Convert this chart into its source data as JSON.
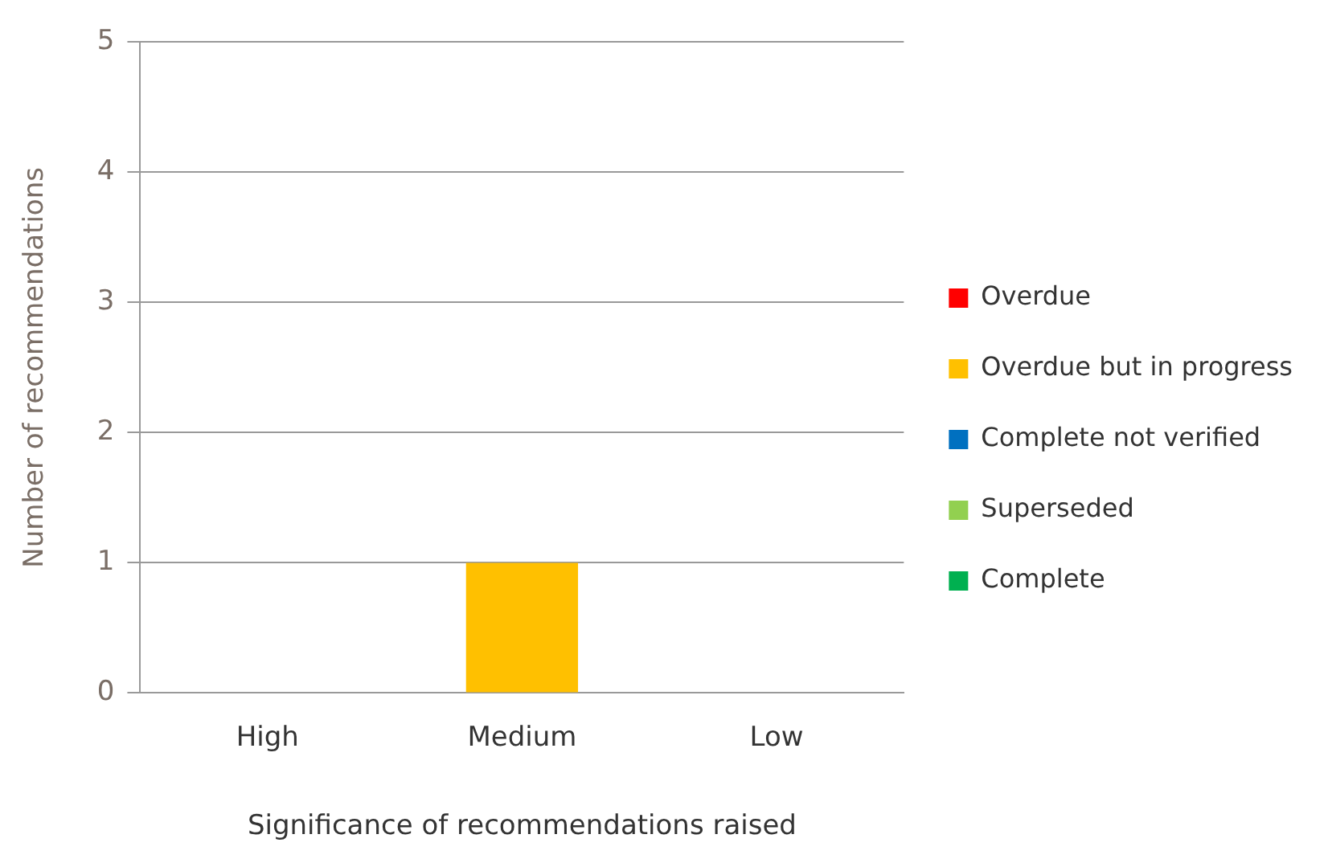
{
  "chart_data": {
    "type": "bar",
    "xlabel": "Significance of recommendations raised",
    "ylabel": "Number of recommendations",
    "categories": [
      "High",
      "Medium",
      "Low"
    ],
    "series": [
      {
        "name": "Overdue",
        "color": "#ff0000",
        "values": [
          0,
          0,
          0
        ]
      },
      {
        "name": "Overdue but in progress",
        "color": "#ffc000",
        "values": [
          0,
          1,
          0
        ]
      },
      {
        "name": "Complete not verified",
        "color": "#0070c0",
        "values": [
          0,
          0,
          0
        ]
      },
      {
        "name": "Superseded",
        "color": "#92d050",
        "values": [
          0,
          0,
          0
        ]
      },
      {
        "name": "Complete",
        "color": "#00b050",
        "values": [
          0,
          0,
          0
        ]
      }
    ],
    "stacked": true,
    "ylim": [
      0,
      5
    ],
    "yticks": [
      0,
      1,
      2,
      3,
      4,
      5
    ],
    "grid": "y",
    "legend": "right"
  }
}
